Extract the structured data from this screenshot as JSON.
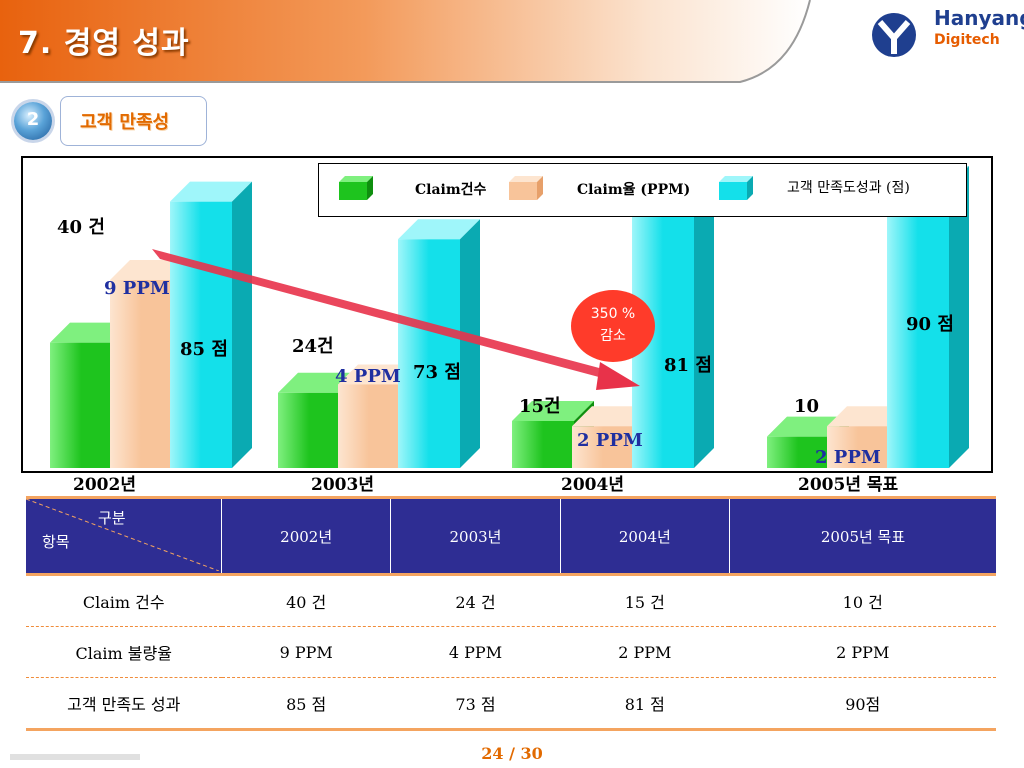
{
  "header": {
    "title": "7. 경영 성과",
    "logo_line1": "Hanyang",
    "logo_line2": "Digitech"
  },
  "section": {
    "number": "2",
    "label": "고객 만족성"
  },
  "chart_data": {
    "type": "bar",
    "categories": [
      "2002년",
      "2003년",
      "2004년",
      "2005년 목표"
    ],
    "series": [
      {
        "name": "Claim건수",
        "values": [
          40,
          24,
          15,
          10
        ],
        "labels": [
          "40 건",
          "24건",
          "15건",
          "10"
        ],
        "color": "#1ec41e"
      },
      {
        "name": "Claim율 (PPM)",
        "values": [
          9,
          4,
          2,
          2
        ],
        "labels": [
          "9 PPM",
          "4 PPM",
          "2 PPM",
          "2 PPM"
        ],
        "color": "#f8c49a"
      },
      {
        "name": "고객 만족도성과 (점)",
        "values": [
          85,
          73,
          81,
          90
        ],
        "labels": [
          "85 점",
          "73 점",
          "81 점",
          "90 점"
        ],
        "color": "#14e0ea"
      }
    ],
    "annotation": {
      "line1": "350 %",
      "line2": "감소"
    },
    "legend_position": "top-right"
  },
  "table": {
    "corner_top": "구분",
    "corner_bottom": "항목",
    "headers": [
      "2002년",
      "2003년",
      "2004년",
      "2005년 목표"
    ],
    "rows": [
      {
        "label": "Claim 건수",
        "cells": [
          "40 건",
          "24 건",
          "15 건",
          "10 건"
        ]
      },
      {
        "label": "Claim 불량율",
        "cells": [
          "9 PPM",
          "4 PPM",
          "2 PPM",
          "2 PPM"
        ]
      },
      {
        "label": "고객 만족도 성과",
        "cells": [
          "85 점",
          "73 점",
          "81 점",
          "90점"
        ]
      }
    ]
  },
  "footer": {
    "page": "24 / 30"
  }
}
